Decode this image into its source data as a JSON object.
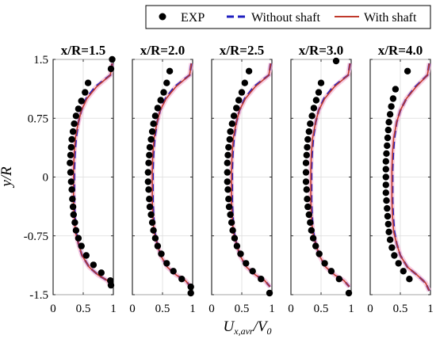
{
  "chart_data": {
    "type": "line",
    "ylabel": {
      "main": "y/R"
    },
    "xlabel": {
      "main": "U",
      "sub1": "x,avr",
      "slash": "/V",
      "sub2": "0"
    },
    "xlim": [
      0,
      1
    ],
    "ylim": [
      -1.5,
      1.5
    ],
    "xticks": [
      0,
      0.5,
      1
    ],
    "xtick_labels": [
      "0",
      "0.5",
      "1"
    ],
    "yticks": [
      1.5,
      0.75,
      0,
      -0.75,
      -1.5
    ],
    "ytick_labels": [
      "1.5",
      "0.75",
      "0",
      "-0.75",
      "-1.5"
    ],
    "grid": true,
    "legend_position": "top",
    "legend": [
      {
        "label": "EXP",
        "style": "dots",
        "color": "#000000"
      },
      {
        "label": "Without shaft",
        "style": "dashed",
        "color": "#1f1fbf"
      },
      {
        "label": "With shaft",
        "style": "solid",
        "color": "#c0392b"
      }
    ],
    "panels": [
      {
        "title": "x/R=1.5",
        "series": [
          {
            "name": "EXP",
            "x": [
              0.98,
              0.96,
              0.58,
              0.53,
              0.47,
              0.42,
              0.38,
              0.35,
              0.33,
              0.31,
              0.3,
              0.29,
              0.28,
              0.29,
              0.3,
              0.31,
              0.32,
              0.33,
              0.34,
              0.36,
              0.38,
              0.42,
              0.47,
              0.55,
              0.67,
              0.8,
              0.95,
              0.96
            ],
            "y": [
              1.5,
              1.38,
              1.2,
              1.08,
              0.97,
              0.87,
              0.78,
              0.68,
              0.58,
              0.48,
              0.38,
              0.28,
              0.18,
              0.06,
              -0.06,
              -0.16,
              -0.28,
              -0.38,
              -0.48,
              -0.58,
              -0.68,
              -0.78,
              -0.88,
              -1.0,
              -1.12,
              -1.22,
              -1.32,
              -1.38
            ]
          },
          {
            "name": "Without shaft",
            "x": [
              0.98,
              0.95,
              0.7,
              0.55,
              0.47,
              0.42,
              0.38,
              0.36,
              0.35,
              0.35,
              0.35,
              0.36,
              0.38,
              0.42,
              0.48,
              0.6,
              0.75,
              0.9,
              0.97
            ],
            "y": [
              1.45,
              1.3,
              1.15,
              1.0,
              0.85,
              0.7,
              0.5,
              0.3,
              0.1,
              -0.1,
              -0.3,
              -0.5,
              -0.7,
              -0.85,
              -1.0,
              -1.15,
              -1.25,
              -1.32,
              -1.4
            ]
          },
          {
            "name": "With shaft",
            "x": [
              0.98,
              0.95,
              0.72,
              0.56,
              0.47,
              0.42,
              0.37,
              0.35,
              0.34,
              0.34,
              0.34,
              0.35,
              0.37,
              0.42,
              0.48,
              0.6,
              0.75,
              0.9,
              0.97
            ],
            "y": [
              1.45,
              1.3,
              1.15,
              1.0,
              0.85,
              0.7,
              0.5,
              0.3,
              0.1,
              -0.1,
              -0.3,
              -0.5,
              -0.7,
              -0.85,
              -1.0,
              -1.15,
              -1.25,
              -1.32,
              -1.4
            ]
          }
        ]
      },
      {
        "title": "x/R=2.0",
        "series": [
          {
            "name": "EXP",
            "x": [
              0.62,
              0.57,
              0.52,
              0.47,
              0.42,
              0.38,
              0.35,
              0.33,
              0.31,
              0.29,
              0.28,
              0.27,
              0.26,
              0.26,
              0.27,
              0.28,
              0.29,
              0.31,
              0.33,
              0.35,
              0.38,
              0.42,
              0.48,
              0.57,
              0.68,
              0.82,
              0.97,
              0.97
            ],
            "y": [
              1.35,
              1.2,
              1.08,
              0.98,
              0.88,
              0.78,
              0.68,
              0.58,
              0.48,
              0.38,
              0.28,
              0.18,
              0.06,
              -0.06,
              -0.16,
              -0.28,
              -0.38,
              -0.48,
              -0.58,
              -0.68,
              -0.78,
              -0.88,
              -0.98,
              -1.1,
              -1.2,
              -1.3,
              -1.4,
              -1.48
            ]
          },
          {
            "name": "Without shaft",
            "x": [
              0.98,
              0.95,
              0.7,
              0.55,
              0.46,
              0.41,
              0.37,
              0.35,
              0.34,
              0.34,
              0.34,
              0.35,
              0.37,
              0.41,
              0.47,
              0.58,
              0.73,
              0.88,
              0.97
            ],
            "y": [
              1.45,
              1.3,
              1.15,
              1.0,
              0.85,
              0.7,
              0.5,
              0.3,
              0.1,
              -0.1,
              -0.3,
              -0.5,
              -0.7,
              -0.85,
              -1.0,
              -1.15,
              -1.25,
              -1.32,
              -1.4
            ]
          },
          {
            "name": "With shaft",
            "x": [
              0.98,
              0.95,
              0.72,
              0.56,
              0.46,
              0.41,
              0.36,
              0.34,
              0.33,
              0.33,
              0.33,
              0.34,
              0.36,
              0.41,
              0.47,
              0.58,
              0.73,
              0.88,
              0.97
            ],
            "y": [
              1.45,
              1.3,
              1.15,
              1.0,
              0.85,
              0.7,
              0.5,
              0.3,
              0.1,
              -0.1,
              -0.3,
              -0.5,
              -0.7,
              -0.85,
              -1.0,
              -1.15,
              -1.25,
              -1.32,
              -1.4
            ]
          }
        ]
      },
      {
        "title": "x/R=2.5",
        "series": [
          {
            "name": "EXP",
            "x": [
              0.62,
              0.55,
              0.5,
              0.45,
              0.41,
              0.37,
              0.34,
              0.31,
              0.3,
              0.28,
              0.27,
              0.26,
              0.26,
              0.26,
              0.27,
              0.28,
              0.29,
              0.31,
              0.33,
              0.35,
              0.38,
              0.42,
              0.48,
              0.57,
              0.68,
              0.82,
              0.96
            ],
            "y": [
              1.35,
              1.2,
              1.08,
              0.98,
              0.88,
              0.78,
              0.68,
              0.58,
              0.48,
              0.38,
              0.28,
              0.18,
              0.06,
              -0.06,
              -0.16,
              -0.28,
              -0.38,
              -0.48,
              -0.58,
              -0.68,
              -0.78,
              -0.88,
              -0.98,
              -1.1,
              -1.2,
              -1.3,
              -1.48
            ]
          },
          {
            "name": "Without shaft",
            "x": [
              0.98,
              0.95,
              0.7,
              0.55,
              0.46,
              0.41,
              0.37,
              0.35,
              0.34,
              0.34,
              0.34,
              0.35,
              0.37,
              0.41,
              0.47,
              0.58,
              0.73,
              0.88,
              0.97
            ],
            "y": [
              1.45,
              1.3,
              1.15,
              1.0,
              0.85,
              0.7,
              0.5,
              0.3,
              0.1,
              -0.1,
              -0.3,
              -0.5,
              -0.7,
              -0.85,
              -1.0,
              -1.15,
              -1.25,
              -1.32,
              -1.4
            ]
          },
          {
            "name": "With shaft",
            "x": [
              0.98,
              0.95,
              0.72,
              0.56,
              0.46,
              0.41,
              0.36,
              0.34,
              0.33,
              0.33,
              0.33,
              0.34,
              0.36,
              0.41,
              0.47,
              0.58,
              0.73,
              0.88,
              0.97
            ],
            "y": [
              1.45,
              1.3,
              1.15,
              1.0,
              0.85,
              0.7,
              0.5,
              0.3,
              0.1,
              -0.1,
              -0.3,
              -0.5,
              -0.7,
              -0.85,
              -1.0,
              -1.15,
              -1.25,
              -1.32,
              -1.4
            ]
          }
        ]
      },
      {
        "title": "x/R=3.0",
        "series": [
          {
            "name": "EXP",
            "x": [
              0.75,
              0.5,
              0.46,
              0.42,
              0.38,
              0.35,
              0.32,
              0.3,
              0.28,
              0.27,
              0.26,
              0.25,
              0.25,
              0.25,
              0.26,
              0.27,
              0.28,
              0.3,
              0.32,
              0.34,
              0.37,
              0.41,
              0.47,
              0.56,
              0.67,
              0.8,
              0.96
            ],
            "y": [
              1.48,
              1.2,
              1.08,
              0.98,
              0.88,
              0.78,
              0.68,
              0.58,
              0.48,
              0.38,
              0.28,
              0.18,
              0.06,
              -0.06,
              -0.16,
              -0.28,
              -0.38,
              -0.48,
              -0.58,
              -0.68,
              -0.78,
              -0.88,
              -0.98,
              -1.1,
              -1.2,
              -1.3,
              -1.48
            ]
          },
          {
            "name": "Without shaft",
            "x": [
              0.98,
              0.95,
              0.7,
              0.55,
              0.46,
              0.41,
              0.37,
              0.35,
              0.34,
              0.34,
              0.34,
              0.35,
              0.37,
              0.41,
              0.47,
              0.58,
              0.73,
              0.88,
              0.97
            ],
            "y": [
              1.45,
              1.3,
              1.15,
              1.0,
              0.85,
              0.7,
              0.5,
              0.3,
              0.1,
              -0.1,
              -0.3,
              -0.5,
              -0.7,
              -0.85,
              -1.0,
              -1.15,
              -1.25,
              -1.32,
              -1.4
            ]
          },
          {
            "name": "With shaft",
            "x": [
              0.98,
              0.95,
              0.72,
              0.56,
              0.46,
              0.41,
              0.36,
              0.34,
              0.33,
              0.33,
              0.33,
              0.34,
              0.36,
              0.41,
              0.47,
              0.58,
              0.73,
              0.88,
              0.97
            ],
            "y": [
              1.45,
              1.3,
              1.15,
              1.0,
              0.85,
              0.7,
              0.5,
              0.3,
              0.1,
              -0.1,
              -0.3,
              -0.5,
              -0.7,
              -0.85,
              -1.0,
              -1.15,
              -1.25,
              -1.32,
              -1.4
            ]
          }
        ]
      },
      {
        "title": "x/R=4.0",
        "series": [
          {
            "name": "EXP",
            "x": [
              0.62,
              0.42,
              0.38,
              0.35,
              0.33,
              0.31,
              0.3,
              0.29,
              0.28,
              0.27,
              0.26,
              0.26,
              0.26,
              0.26,
              0.26,
              0.27,
              0.28,
              0.29,
              0.3,
              0.31,
              0.33,
              0.36,
              0.4,
              0.47,
              0.55,
              0.65
            ],
            "y": [
              1.35,
              1.12,
              1.0,
              0.9,
              0.8,
              0.7,
              0.6,
              0.5,
              0.4,
              0.3,
              0.2,
              0.1,
              0.0,
              -0.1,
              -0.2,
              -0.3,
              -0.4,
              -0.5,
              -0.6,
              -0.7,
              -0.8,
              -0.9,
              -1.0,
              -1.1,
              -1.2,
              -1.3
            ]
          },
          {
            "name": "Without shaft",
            "x": [
              0.98,
              0.95,
              0.75,
              0.6,
              0.5,
              0.44,
              0.4,
              0.38,
              0.37,
              0.37,
              0.37,
              0.38,
              0.4,
              0.44,
              0.5,
              0.62,
              0.78,
              0.92,
              0.98
            ],
            "y": [
              1.45,
              1.3,
              1.15,
              1.0,
              0.85,
              0.7,
              0.5,
              0.3,
              0.1,
              -0.1,
              -0.3,
              -0.5,
              -0.7,
              -0.85,
              -1.0,
              -1.15,
              -1.25,
              -1.35,
              -1.45
            ]
          },
          {
            "name": "With shaft",
            "x": [
              0.98,
              0.95,
              0.76,
              0.6,
              0.5,
              0.44,
              0.39,
              0.37,
              0.36,
              0.36,
              0.36,
              0.37,
              0.39,
              0.44,
              0.5,
              0.62,
              0.78,
              0.92,
              0.98
            ],
            "y": [
              1.45,
              1.3,
              1.15,
              1.0,
              0.85,
              0.7,
              0.5,
              0.3,
              0.1,
              -0.1,
              -0.3,
              -0.5,
              -0.7,
              -0.85,
              -1.0,
              -1.15,
              -1.25,
              -1.35,
              -1.45
            ]
          }
        ]
      }
    ]
  }
}
